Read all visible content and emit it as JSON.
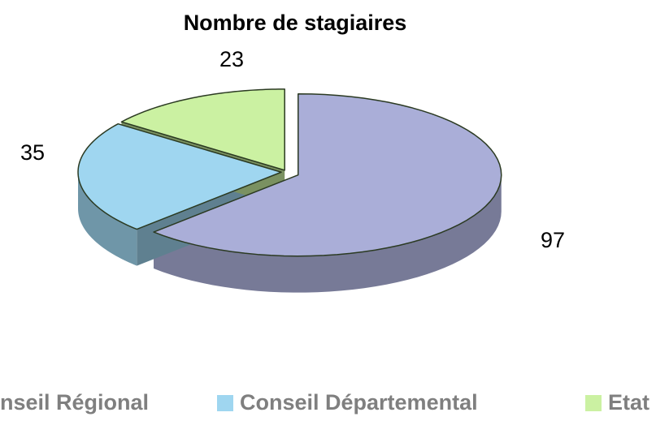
{
  "chart_data": {
    "type": "pie3d",
    "title": "Nombre de stagiaires",
    "categories": [
      "Conseil Régional",
      "Conseil Départemental",
      "Etat"
    ],
    "values": [
      97,
      35,
      23
    ],
    "colors": [
      "#aaaed8",
      "#9fd6f0",
      "#cbf1a2"
    ]
  }
}
